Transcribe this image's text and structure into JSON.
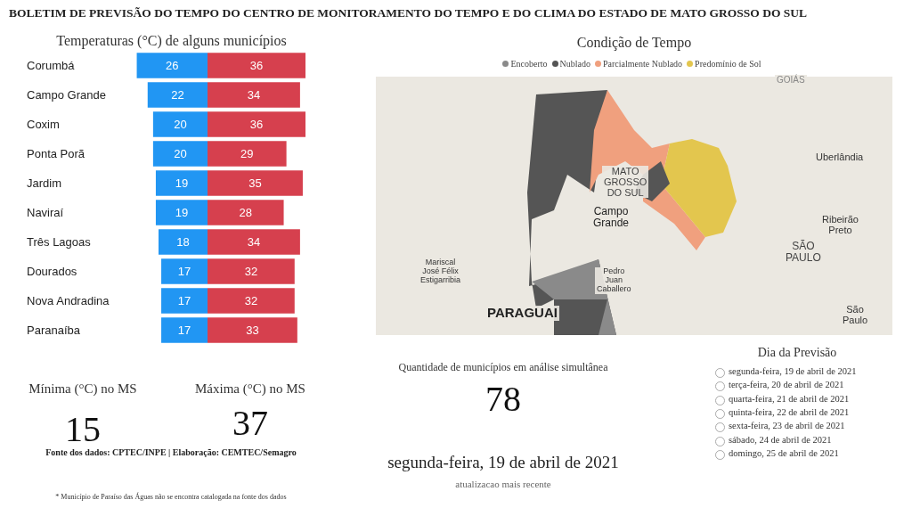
{
  "chart_data": [
    {
      "type": "bar",
      "orientation": "horizontal",
      "title": "BOLETIM DE PREVISÃO DO TEMPO DO CENTRO DE MONITORAMENTO DO TEMPO E DO CLIMA DO ESTADO DE MATO GROSSO DO SUL",
      "subtitle": "Temperaturas (°C) de alguns municípios",
      "categories": [
        "Corumbá",
        "Campo Grande",
        "Coxim",
        "Ponta Porã",
        "Jardim",
        "Naviraí",
        "Três Lagoas",
        "Dourados",
        "Nova Andradina",
        "Paranaíba"
      ],
      "data_labels": true,
      "color": "#2196f3",
      "values": [
        26,
        22,
        20,
        20,
        19,
        19,
        18,
        17,
        17,
        17
      ]
    },
    {
      "type": "bar",
      "orientation": "horizontal",
      "data_labels": true,
      "color": "#d6404e",
      "values": [
        36,
        34,
        36,
        29,
        35,
        28,
        34,
        32,
        32,
        33
      ]
    },
    {
      "type": "other",
      "title": "Condição de Tempo",
      "categories": [
        "Encoberto",
        "Nublado",
        "Parcialmente Nublado",
        "Predomínio de Sol"
      ],
      "colors": [
        "#8a8a8a",
        "#555555",
        "#f0a07e",
        "#e3c64e"
      ],
      "annotations": [
        "GOIÁS",
        "Uberlândia",
        "MATO GROSSO DO SUL",
        "Campo Grande",
        "Ribeirão Preto",
        "SÃO PAULO",
        "Mariscal José Félix Estigarribia",
        "Pedro Juan Caballero",
        "PARAGUAI",
        "São Paulo"
      ]
    },
    {
      "type": "other",
      "categories": [
        "Mínima (°C) no MS",
        "Máxima (°C) no MS",
        "Quantidade de municípios em análise simultânea"
      ],
      "values": [
        15,
        37,
        78
      ],
      "data_labels": true,
      "annotations": [
        "segunda-feira, 19 de abril de 2021",
        "atualizacao mais recente",
        "Fonte dos dados: CPTEC/INPE | Elaboração: CEMTEC/Semagro",
        "* Município de Paraíso das Águas não se encontra catalogada na fonte dos dados"
      ]
    },
    {
      "type": "other",
      "title": "Dia da Previsão",
      "categories": [
        "segunda-feira, 19 de abril de 2021",
        "terça-feira, 20 de abril de 2021",
        "quarta-feira, 21 de abril de 2021",
        "quinta-feira, 22 de abril de 2021",
        "sexta-feira, 23 de abril de 2021",
        "sábado, 24 de abril de 2021",
        "domingo, 25 de abril de 2021"
      ]
    }
  ]
}
